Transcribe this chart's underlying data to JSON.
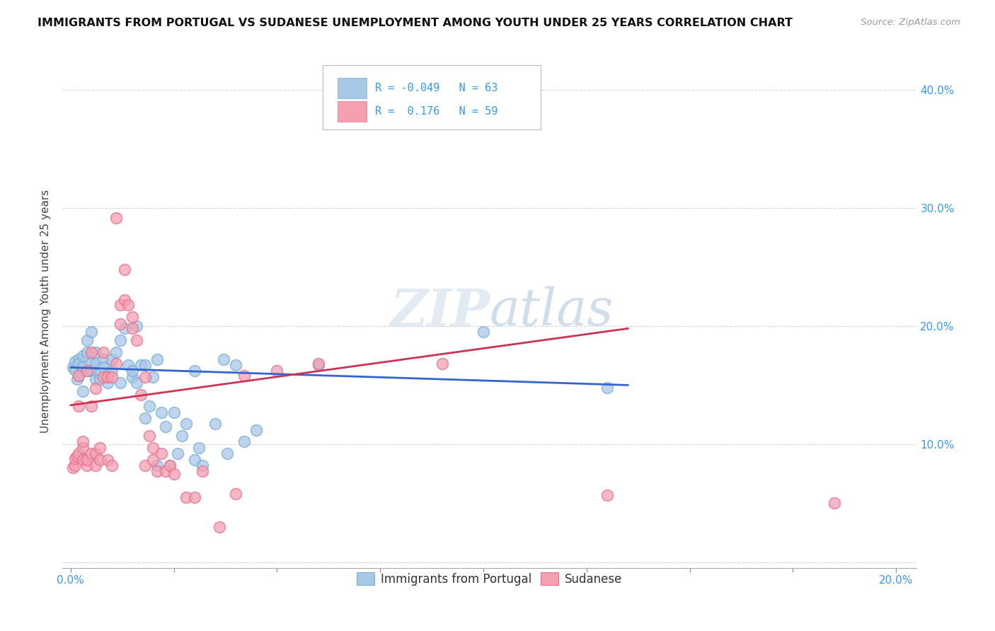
{
  "title": "IMMIGRANTS FROM PORTUGAL VS SUDANESE UNEMPLOYMENT AMONG YOUTH UNDER 25 YEARS CORRELATION CHART",
  "source": "Source: ZipAtlas.com",
  "xlabel_ticks": [
    "0.0%",
    "",
    "",
    "",
    "",
    "",
    "",
    "",
    "20.0%"
  ],
  "xlabel_tick_vals": [
    0.0,
    0.025,
    0.05,
    0.075,
    0.1,
    0.125,
    0.15,
    0.175,
    0.2
  ],
  "ylabel": "Unemployment Among Youth under 25 years",
  "ylabel_ticks": [
    "",
    "10.0%",
    "20.0%",
    "30.0%",
    "40.0%"
  ],
  "ylabel_tick_vals": [
    0.0,
    0.1,
    0.2,
    0.3,
    0.4
  ],
  "xlim": [
    -0.002,
    0.205
  ],
  "ylim": [
    -0.005,
    0.43
  ],
  "blue_R": -0.049,
  "blue_N": 63,
  "pink_R": 0.176,
  "pink_N": 59,
  "blue_color": "#a8c8e8",
  "pink_color": "#f4a0b0",
  "blue_edge_color": "#7aafd4",
  "pink_edge_color": "#e87090",
  "blue_line_color": "#3366cc",
  "pink_line_color": "#cc3355",
  "watermark": "ZIPatlas",
  "legend_label_blue": "Immigrants from Portugal",
  "legend_label_pink": "Sudanese",
  "blue_line_x": [
    0.0,
    0.135
  ],
  "blue_line_y": [
    0.165,
    0.15
  ],
  "pink_line_x": [
    0.0,
    0.135
  ],
  "pink_line_y": [
    0.133,
    0.198
  ],
  "blue_points": [
    [
      0.0005,
      0.165
    ],
    [
      0.001,
      0.163
    ],
    [
      0.001,
      0.17
    ],
    [
      0.0015,
      0.155
    ],
    [
      0.002,
      0.172
    ],
    [
      0.002,
      0.158
    ],
    [
      0.002,
      0.168
    ],
    [
      0.003,
      0.165
    ],
    [
      0.003,
      0.145
    ],
    [
      0.003,
      0.175
    ],
    [
      0.004,
      0.162
    ],
    [
      0.004,
      0.178
    ],
    [
      0.004,
      0.188
    ],
    [
      0.005,
      0.168
    ],
    [
      0.005,
      0.162
    ],
    [
      0.005,
      0.195
    ],
    [
      0.006,
      0.155
    ],
    [
      0.006,
      0.178
    ],
    [
      0.006,
      0.168
    ],
    [
      0.007,
      0.16
    ],
    [
      0.007,
      0.155
    ],
    [
      0.008,
      0.172
    ],
    [
      0.008,
      0.165
    ],
    [
      0.009,
      0.158
    ],
    [
      0.009,
      0.152
    ],
    [
      0.01,
      0.172
    ],
    [
      0.01,
      0.162
    ],
    [
      0.011,
      0.178
    ],
    [
      0.012,
      0.152
    ],
    [
      0.012,
      0.188
    ],
    [
      0.013,
      0.198
    ],
    [
      0.014,
      0.167
    ],
    [
      0.015,
      0.157
    ],
    [
      0.015,
      0.162
    ],
    [
      0.016,
      0.152
    ],
    [
      0.016,
      0.2
    ],
    [
      0.017,
      0.167
    ],
    [
      0.018,
      0.122
    ],
    [
      0.018,
      0.167
    ],
    [
      0.019,
      0.132
    ],
    [
      0.02,
      0.157
    ],
    [
      0.021,
      0.082
    ],
    [
      0.021,
      0.172
    ],
    [
      0.022,
      0.127
    ],
    [
      0.023,
      0.115
    ],
    [
      0.024,
      0.082
    ],
    [
      0.025,
      0.127
    ],
    [
      0.026,
      0.092
    ],
    [
      0.027,
      0.107
    ],
    [
      0.028,
      0.117
    ],
    [
      0.03,
      0.162
    ],
    [
      0.03,
      0.087
    ],
    [
      0.031,
      0.097
    ],
    [
      0.032,
      0.082
    ],
    [
      0.035,
      0.117
    ],
    [
      0.037,
      0.172
    ],
    [
      0.038,
      0.092
    ],
    [
      0.04,
      0.167
    ],
    [
      0.042,
      0.102
    ],
    [
      0.045,
      0.112
    ],
    [
      0.06,
      0.167
    ],
    [
      0.1,
      0.195
    ],
    [
      0.13,
      0.148
    ]
  ],
  "pink_points": [
    [
      0.0005,
      0.08
    ],
    [
      0.001,
      0.082
    ],
    [
      0.001,
      0.088
    ],
    [
      0.0015,
      0.09
    ],
    [
      0.002,
      0.092
    ],
    [
      0.002,
      0.132
    ],
    [
      0.002,
      0.158
    ],
    [
      0.003,
      0.087
    ],
    [
      0.003,
      0.097
    ],
    [
      0.003,
      0.102
    ],
    [
      0.004,
      0.082
    ],
    [
      0.004,
      0.087
    ],
    [
      0.004,
      0.162
    ],
    [
      0.005,
      0.092
    ],
    [
      0.005,
      0.132
    ],
    [
      0.005,
      0.178
    ],
    [
      0.006,
      0.082
    ],
    [
      0.006,
      0.092
    ],
    [
      0.006,
      0.147
    ],
    [
      0.007,
      0.087
    ],
    [
      0.007,
      0.097
    ],
    [
      0.008,
      0.157
    ],
    [
      0.008,
      0.178
    ],
    [
      0.009,
      0.087
    ],
    [
      0.009,
      0.157
    ],
    [
      0.01,
      0.082
    ],
    [
      0.01,
      0.157
    ],
    [
      0.011,
      0.168
    ],
    [
      0.011,
      0.292
    ],
    [
      0.012,
      0.202
    ],
    [
      0.012,
      0.218
    ],
    [
      0.013,
      0.248
    ],
    [
      0.013,
      0.222
    ],
    [
      0.014,
      0.218
    ],
    [
      0.015,
      0.198
    ],
    [
      0.015,
      0.208
    ],
    [
      0.016,
      0.188
    ],
    [
      0.017,
      0.142
    ],
    [
      0.018,
      0.157
    ],
    [
      0.018,
      0.082
    ],
    [
      0.019,
      0.107
    ],
    [
      0.02,
      0.087
    ],
    [
      0.02,
      0.097
    ],
    [
      0.021,
      0.077
    ],
    [
      0.022,
      0.092
    ],
    [
      0.023,
      0.077
    ],
    [
      0.024,
      0.082
    ],
    [
      0.025,
      0.075
    ],
    [
      0.028,
      0.055
    ],
    [
      0.03,
      0.055
    ],
    [
      0.032,
      0.077
    ],
    [
      0.036,
      0.03
    ],
    [
      0.04,
      0.058
    ],
    [
      0.042,
      0.158
    ],
    [
      0.05,
      0.162
    ],
    [
      0.06,
      0.168
    ],
    [
      0.09,
      0.168
    ],
    [
      0.13,
      0.057
    ],
    [
      0.185,
      0.05
    ]
  ]
}
